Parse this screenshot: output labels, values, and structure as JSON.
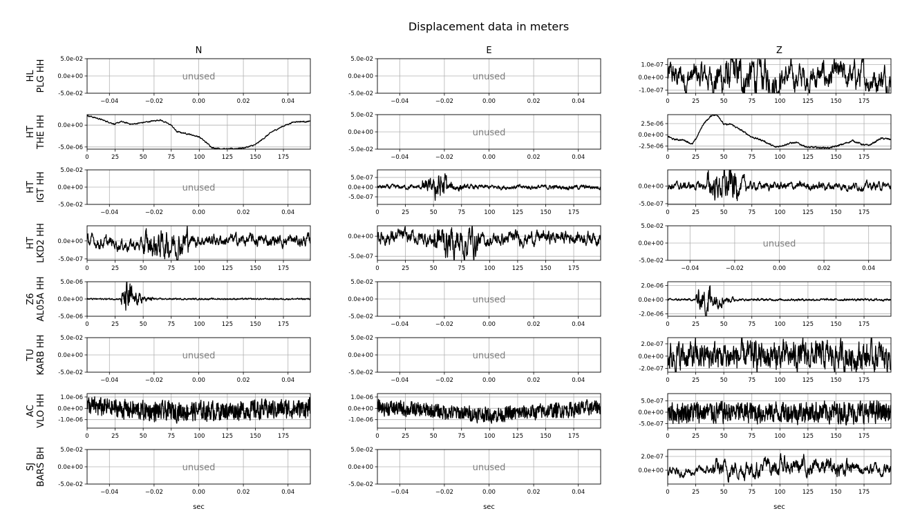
{
  "chart_data": {
    "type": "line",
    "title": "Displacement data in meters",
    "columns": [
      "N",
      "E",
      "Z"
    ],
    "xlabel": "sec",
    "unused_label": "unused",
    "unused_axes": {
      "xlim": [
        -0.05,
        0.05
      ],
      "xticks": [
        -0.04,
        -0.02,
        0.0,
        0.02,
        0.04
      ],
      "xtick_labels": [
        "−0.04",
        "−0.02",
        "0.00",
        "0.02",
        "0.04"
      ],
      "ylim": [
        -0.05,
        0.05
      ],
      "yticks": [
        0.05,
        0.0,
        -0.05
      ],
      "ytick_labels": [
        "5.0e-02",
        "0.0e+00",
        "-5.0e-02"
      ]
    },
    "time_axes": {
      "xlim": [
        0,
        199
      ],
      "xticks": [
        0,
        25,
        50,
        75,
        100,
        125,
        150,
        175
      ],
      "xtick_labels": [
        "0",
        "25",
        "50",
        "75",
        "100",
        "125",
        "150",
        "175"
      ]
    },
    "grid": true,
    "rows": [
      {
        "network": "HL",
        "station": "PLG HH",
        "panels": [
          {
            "unused": true
          },
          {
            "unused": true
          },
          {
            "ylim": [
              -1.24e-07,
              1.46e-07
            ],
            "yticks": [
              1e-07,
              0,
              -1e-07
            ],
            "ytick_labels": [
              "1.0e-07",
              "0.0e+00",
              "-1.0e-07"
            ],
            "trend": [
              [
                0,
                0
              ],
              [
                199,
                0
              ]
            ],
            "noise": [
              [
                0,
                40,
                6e-08
              ],
              [
                40,
                100,
                8.5e-08
              ],
              [
                100,
                199,
                6e-08
              ]
            ],
            "smooth": 0.82
          }
        ]
      },
      {
        "network": "HT",
        "station": "THE HH",
        "panels": [
          {
            "ylim": [
              -5.5e-06,
              2.4e-06
            ],
            "yticks": [
              0,
              -5e-06
            ],
            "ytick_labels": [
              "0.0e+00",
              "-5.0e-06"
            ],
            "trend": [
              [
                0,
                2.2e-06
              ],
              [
                10,
                1.5e-06
              ],
              [
                25,
                2e-07
              ],
              [
                30,
                8e-07
              ],
              [
                40,
                2e-07
              ],
              [
                50,
                6e-07
              ],
              [
                65,
                1.2e-06
              ],
              [
                75,
                0
              ],
              [
                80,
                -1.5e-06
              ],
              [
                90,
                -2e-06
              ],
              [
                100,
                -2.7e-06
              ],
              [
                112,
                -5.2e-06
              ],
              [
                125,
                -5.5e-06
              ],
              [
                140,
                -5.2e-06
              ],
              [
                150,
                -4.5e-06
              ],
              [
                165,
                -1.5e-06
              ],
              [
                175,
                -2e-07
              ],
              [
                185,
                8e-07
              ],
              [
                199,
                8e-07
              ]
            ],
            "noise": [
              [
                0,
                199,
                8e-08
              ]
            ],
            "smooth": 0.6
          },
          {
            "unused": true
          },
          {
            "ylim": [
              -3.2e-06,
              4.5e-06
            ],
            "yticks": [
              2.5e-06,
              0,
              -2.5e-06
            ],
            "ytick_labels": [
              "2.5e-06",
              "0.0e+00",
              "-2.5e-06"
            ],
            "trend": [
              [
                0,
                -3e-07
              ],
              [
                5,
                -1e-06
              ],
              [
                15,
                -1.2e-06
              ],
              [
                22,
                -2.1e-06
              ],
              [
                25,
                -1e-06
              ],
              [
                32,
                2.5e-06
              ],
              [
                40,
                4.5e-06
              ],
              [
                45,
                4.3e-06
              ],
              [
                50,
                2.3e-06
              ],
              [
                57,
                2.3e-06
              ],
              [
                70,
                3e-07
              ],
              [
                75,
                -5e-07
              ],
              [
                85,
                -1.3e-06
              ],
              [
                96,
                -2.8e-06
              ],
              [
                110,
                -1.8e-06
              ],
              [
                115,
                -1.8e-06
              ],
              [
                125,
                -2.8e-06
              ],
              [
                145,
                -2.9e-06
              ],
              [
                155,
                -2.2e-06
              ],
              [
                165,
                -1.3e-06
              ],
              [
                175,
                -2.3e-06
              ],
              [
                180,
                -2.3e-06
              ],
              [
                190,
                -8e-07
              ],
              [
                199,
                -1e-06
              ]
            ],
            "noise": [
              [
                0,
                199,
                1e-07
              ]
            ],
            "smooth": 0.6
          }
        ]
      },
      {
        "network": "HT",
        "station": "IGT HH",
        "panels": [
          {
            "unused": true
          },
          {
            "ylim": [
              -8.9e-07,
              8.9e-07
            ],
            "yticks": [
              5e-07,
              0,
              -5e-07
            ],
            "ytick_labels": [
              "5.0e-07",
              "0.0e+00",
              "-5.0e-07"
            ],
            "trend": [
              [
                0,
                0
              ],
              [
                199,
                0
              ]
            ],
            "noise": [
              [
                0,
                40,
                6e-08
              ],
              [
                40,
                50,
                1.8e-07
              ],
              [
                50,
                62,
                4e-07
              ],
              [
                62,
                75,
                1.2e-07
              ],
              [
                75,
                199,
                6e-08
              ]
            ],
            "smooth": 0.7
          },
          {
            "ylim": [
              -5.2e-07,
              4.6e-07
            ],
            "yticks": [
              0,
              -5e-07
            ],
            "ytick_labels": [
              "0.0e+00",
              "-5.0e-07"
            ],
            "trend": [
              [
                0,
                0
              ],
              [
                199,
                0
              ]
            ],
            "noise": [
              [
                0,
                35,
                6e-08
              ],
              [
                35,
                50,
                2e-07
              ],
              [
                50,
                62,
                2.8e-07
              ],
              [
                62,
                70,
                1.2e-07
              ],
              [
                70,
                199,
                6e-08
              ]
            ],
            "smooth": 0.75
          }
        ]
      },
      {
        "network": "HT",
        "station": "LKD2 HH",
        "panels": [
          {
            "ylim": [
              -5.4e-07,
              4.2e-07
            ],
            "yticks": [
              0,
              -5e-07
            ],
            "ytick_labels": [
              "0.0e+00",
              "-5.0e-07"
            ],
            "trend": [
              [
                0,
                0
              ],
              [
                25,
                -8e-08
              ],
              [
                55,
                -1.5e-07
              ],
              [
                80,
                -3e-08
              ],
              [
                100,
                3e-08
              ],
              [
                199,
                0
              ]
            ],
            "noise": [
              [
                0,
                50,
                9e-08
              ],
              [
                50,
                90,
                2.2e-07
              ],
              [
                90,
                199,
                9e-08
              ]
            ],
            "smooth": 0.78
          },
          {
            "ylim": [
              -6e-07,
              2.6e-07
            ],
            "yticks": [
              0,
              -5e-07
            ],
            "ytick_labels": [
              "0.0e+00",
              "-5.0e-07"
            ],
            "trend": [
              [
                0,
                0
              ],
              [
                40,
                -5e-08
              ],
              [
                70,
                -1.5e-07
              ],
              [
                100,
                -1e-07
              ],
              [
                130,
                -4e-08
              ],
              [
                199,
                0
              ]
            ],
            "noise": [
              [
                0,
                50,
                1e-07
              ],
              [
                50,
                90,
                2.2e-07
              ],
              [
                90,
                199,
                9e-08
              ]
            ],
            "smooth": 0.78
          },
          {
            "unused": true
          }
        ]
      },
      {
        "network": "Z6",
        "station": "AL05A HH",
        "panels": [
          {
            "ylim": [
              -5e-06,
              5e-06
            ],
            "yticks": [
              5e-06,
              0,
              -5e-06
            ],
            "ytick_labels": [
              "5.0e-06",
              "0.0e+00",
              "-5.0e-06"
            ],
            "trend": [
              [
                0,
                0
              ],
              [
                199,
                0
              ]
            ],
            "noise": [
              [
                0,
                30,
                1.2e-07
              ],
              [
                30,
                34,
                1.2e-06
              ],
              [
                34,
                40,
                2.4e-06
              ],
              [
                40,
                50,
                8e-07
              ],
              [
                50,
                60,
                3e-07
              ],
              [
                60,
                199,
                1.2e-07
              ]
            ],
            "smooth": 0.5
          },
          {
            "unused": true
          },
          {
            "ylim": [
              -2.35e-06,
              2.55e-06
            ],
            "yticks": [
              2e-06,
              0,
              -2e-06
            ],
            "ytick_labels": [
              "2.0e-06",
              "0.0e+00",
              "-2.0e-06"
            ],
            "trend": [
              [
                0,
                0
              ],
              [
                199,
                0
              ]
            ],
            "noise": [
              [
                0,
                25,
                8e-08
              ],
              [
                25,
                33,
                7e-07
              ],
              [
                33,
                38,
                1.4e-06
              ],
              [
                38,
                50,
                5e-07
              ],
              [
                50,
                60,
                2e-07
              ],
              [
                60,
                199,
                8e-08
              ]
            ],
            "smooth": 0.55
          }
        ]
      },
      {
        "network": "TU",
        "station": "KARB HH",
        "panels": [
          {
            "unused": true
          },
          {
            "unused": true
          },
          {
            "ylim": [
              -2.6e-07,
              3e-07
            ],
            "yticks": [
              2e-07,
              0,
              -2e-07
            ],
            "ytick_labels": [
              "2.0e-07",
              "0.0e+00",
              "-2.0e-07"
            ],
            "trend": [
              [
                0,
                0
              ],
              [
                199,
                0
              ]
            ],
            "noise": [
              [
                0,
                199,
                1.2e-07
              ]
            ],
            "smooth": 0.6
          }
        ]
      },
      {
        "network": "AC",
        "station": "VLO HH",
        "panels": [
          {
            "ylim": [
              -1.75e-06,
              1.3e-06
            ],
            "yticks": [
              1e-06,
              0,
              -1e-06
            ],
            "ytick_labels": [
              "1.0e-06",
              "0.0e+00",
              "-1.0e-06"
            ],
            "trend": [
              [
                0,
                2e-07
              ],
              [
                60,
                -3e-07
              ],
              [
                120,
                -2e-07
              ],
              [
                199,
                0
              ]
            ],
            "noise": [
              [
                0,
                199,
                4.5e-07
              ]
            ],
            "smooth": 0.3
          },
          {
            "ylim": [
              -1.75e-06,
              1.3e-06
            ],
            "yticks": [
              1e-06,
              0,
              -1e-06
            ],
            "ytick_labels": [
              "1.0e-06",
              "0.0e+00",
              "-1.0e-06"
            ],
            "trend": [
              [
                0,
                1e-07
              ],
              [
                100,
                -6e-07
              ],
              [
                199,
                1e-07
              ]
            ],
            "noise": [
              [
                0,
                199,
                3.5e-07
              ]
            ],
            "smooth": 0.3
          },
          {
            "ylim": [
              -7e-07,
              8.2e-07
            ],
            "yticks": [
              5e-07,
              0,
              -5e-07
            ],
            "ytick_labels": [
              "5.0e-07",
              "0.0e+00",
              "-5.0e-07"
            ],
            "trend": [
              [
                0,
                0
              ],
              [
                199,
                0
              ]
            ],
            "noise": [
              [
                0,
                199,
                2.5e-07
              ]
            ],
            "smooth": 0.35
          }
        ]
      },
      {
        "network": "SJ",
        "station": "BARS BH",
        "panels": [
          {
            "unused": true
          },
          {
            "unused": true
          },
          {
            "ylim": [
              -2e-07,
              3e-07
            ],
            "yticks": [
              2e-07,
              0
            ],
            "ytick_labels": [
              "2.0e-07",
              "0.0e+00"
            ],
            "trend": [
              [
                0,
                -4e-08
              ],
              [
                60,
                2e-08
              ],
              [
                100,
                6e-08
              ],
              [
                199,
                1e-08
              ]
            ],
            "noise": [
              [
                0,
                40,
                3.5e-08
              ],
              [
                40,
                160,
                7e-08
              ],
              [
                160,
                199,
                5e-08
              ]
            ],
            "smooth": 0.8
          }
        ]
      }
    ]
  }
}
